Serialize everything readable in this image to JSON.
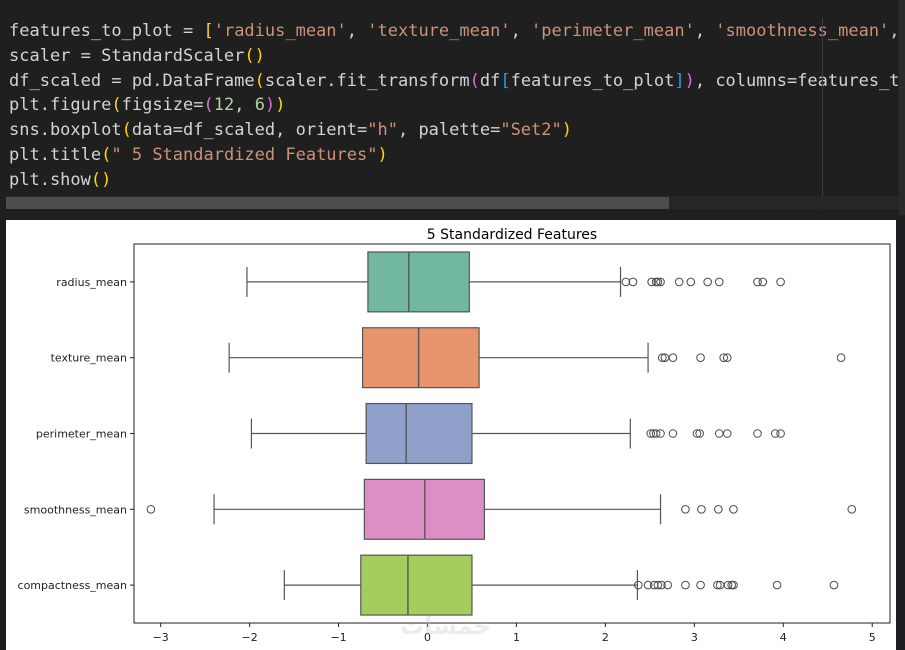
{
  "code": {
    "lines": [
      [
        {
          "t": "features_to_plot = "
        },
        {
          "t": "[",
          "c": "br1"
        },
        {
          "t": "'radius_mean'",
          "c": "str"
        },
        {
          "t": ", "
        },
        {
          "t": "'texture_mean'",
          "c": "str"
        },
        {
          "t": ", "
        },
        {
          "t": "'perimeter_mean'",
          "c": "str"
        },
        {
          "t": ", "
        },
        {
          "t": "'smoothness_mean'",
          "c": "str"
        },
        {
          "t": ", "
        }
      ],
      [
        {
          "t": "scaler = StandardScaler"
        },
        {
          "t": "()",
          "c": "br1"
        }
      ],
      [
        {
          "t": "df_scaled = pd.DataFrame"
        },
        {
          "t": "(",
          "c": "br1"
        },
        {
          "t": "scaler.fit_transform"
        },
        {
          "t": "(",
          "c": "br2"
        },
        {
          "t": "df"
        },
        {
          "t": "[",
          "c": "br3"
        },
        {
          "t": "features_to_plot"
        },
        {
          "t": "]",
          "c": "br3"
        },
        {
          "t": ")",
          "c": "br2"
        },
        {
          "t": ", columns=features_t"
        }
      ],
      [
        {
          "t": "plt.figure"
        },
        {
          "t": "(",
          "c": "br1"
        },
        {
          "t": "figsize="
        },
        {
          "t": "(",
          "c": "br2"
        },
        {
          "t": "12",
          "c": "num"
        },
        {
          "t": ", "
        },
        {
          "t": "6",
          "c": "num"
        },
        {
          "t": ")",
          "c": "br2"
        },
        {
          "t": ")",
          "c": "br1"
        }
      ],
      [
        {
          "t": "sns.boxplot"
        },
        {
          "t": "(",
          "c": "br1"
        },
        {
          "t": "data=df_scaled, orient="
        },
        {
          "t": "\"h\"",
          "c": "str"
        },
        {
          "t": ", palette="
        },
        {
          "t": "\"Set2\"",
          "c": "str"
        },
        {
          "t": ")",
          "c": "br1"
        }
      ],
      [
        {
          "t": "plt.title"
        },
        {
          "t": "(",
          "c": "br1"
        },
        {
          "t": "\" 5 Standardized Features\"",
          "c": "str"
        },
        {
          "t": ")",
          "c": "br1"
        }
      ],
      [
        {
          "t": "plt.show"
        },
        {
          "t": "()",
          "c": "br1"
        }
      ]
    ]
  },
  "chart_data": {
    "type": "boxplot",
    "title": "5 Standardized Features",
    "orientation": "horizontal",
    "xlim": [
      -3.3,
      5.2
    ],
    "xticks": [
      -3,
      -2,
      -1,
      0,
      1,
      2,
      3,
      4,
      5
    ],
    "xtick_labels": [
      "−3",
      "−2",
      "−1",
      "0",
      "1",
      "2",
      "3",
      "4",
      "5"
    ],
    "grid": false,
    "series": [
      {
        "name": "radius_mean",
        "color": "#71b89f",
        "whisker_low": -2.03,
        "q1": -0.67,
        "median": -0.21,
        "q3": 0.47,
        "whisker_high": 2.17,
        "outliers": [
          2.23,
          2.31,
          2.52,
          2.57,
          2.59,
          2.62,
          2.83,
          2.96,
          3.15,
          3.28,
          3.71,
          3.77,
          3.97
        ]
      },
      {
        "name": "texture_mean",
        "color": "#e8946d",
        "whisker_low": -2.23,
        "q1": -0.73,
        "median": -0.1,
        "q3": 0.58,
        "whisker_high": 2.48,
        "outliers": [
          2.64,
          2.67,
          2.76,
          3.07,
          3.33,
          3.37,
          4.65
        ]
      },
      {
        "name": "perimeter_mean",
        "color": "#8fa0ca",
        "whisker_low": -1.98,
        "q1": -0.69,
        "median": -0.24,
        "q3": 0.5,
        "whisker_high": 2.28,
        "outliers": [
          2.51,
          2.54,
          2.57,
          2.62,
          2.76,
          3.03,
          3.06,
          3.28,
          3.37,
          3.71,
          3.91,
          3.97
        ]
      },
      {
        "name": "smoothness_mean",
        "color": "#dc8fc4",
        "whisker_low": -2.4,
        "q1": -0.71,
        "median": -0.03,
        "q3": 0.64,
        "whisker_high": 2.62,
        "outliers": [
          -3.11,
          2.9,
          3.08,
          3.27,
          3.44,
          4.77
        ]
      },
      {
        "name": "compactness_mean",
        "color": "#a4cd5e",
        "whisker_low": -1.61,
        "q1": -0.75,
        "median": -0.22,
        "q3": 0.5,
        "whisker_high": 2.36,
        "outliers": [
          2.37,
          2.48,
          2.55,
          2.59,
          2.63,
          2.7,
          2.9,
          3.07,
          3.26,
          3.29,
          3.38,
          3.42,
          3.44,
          3.93,
          4.57
        ]
      }
    ]
  },
  "watermark": "خمسات"
}
